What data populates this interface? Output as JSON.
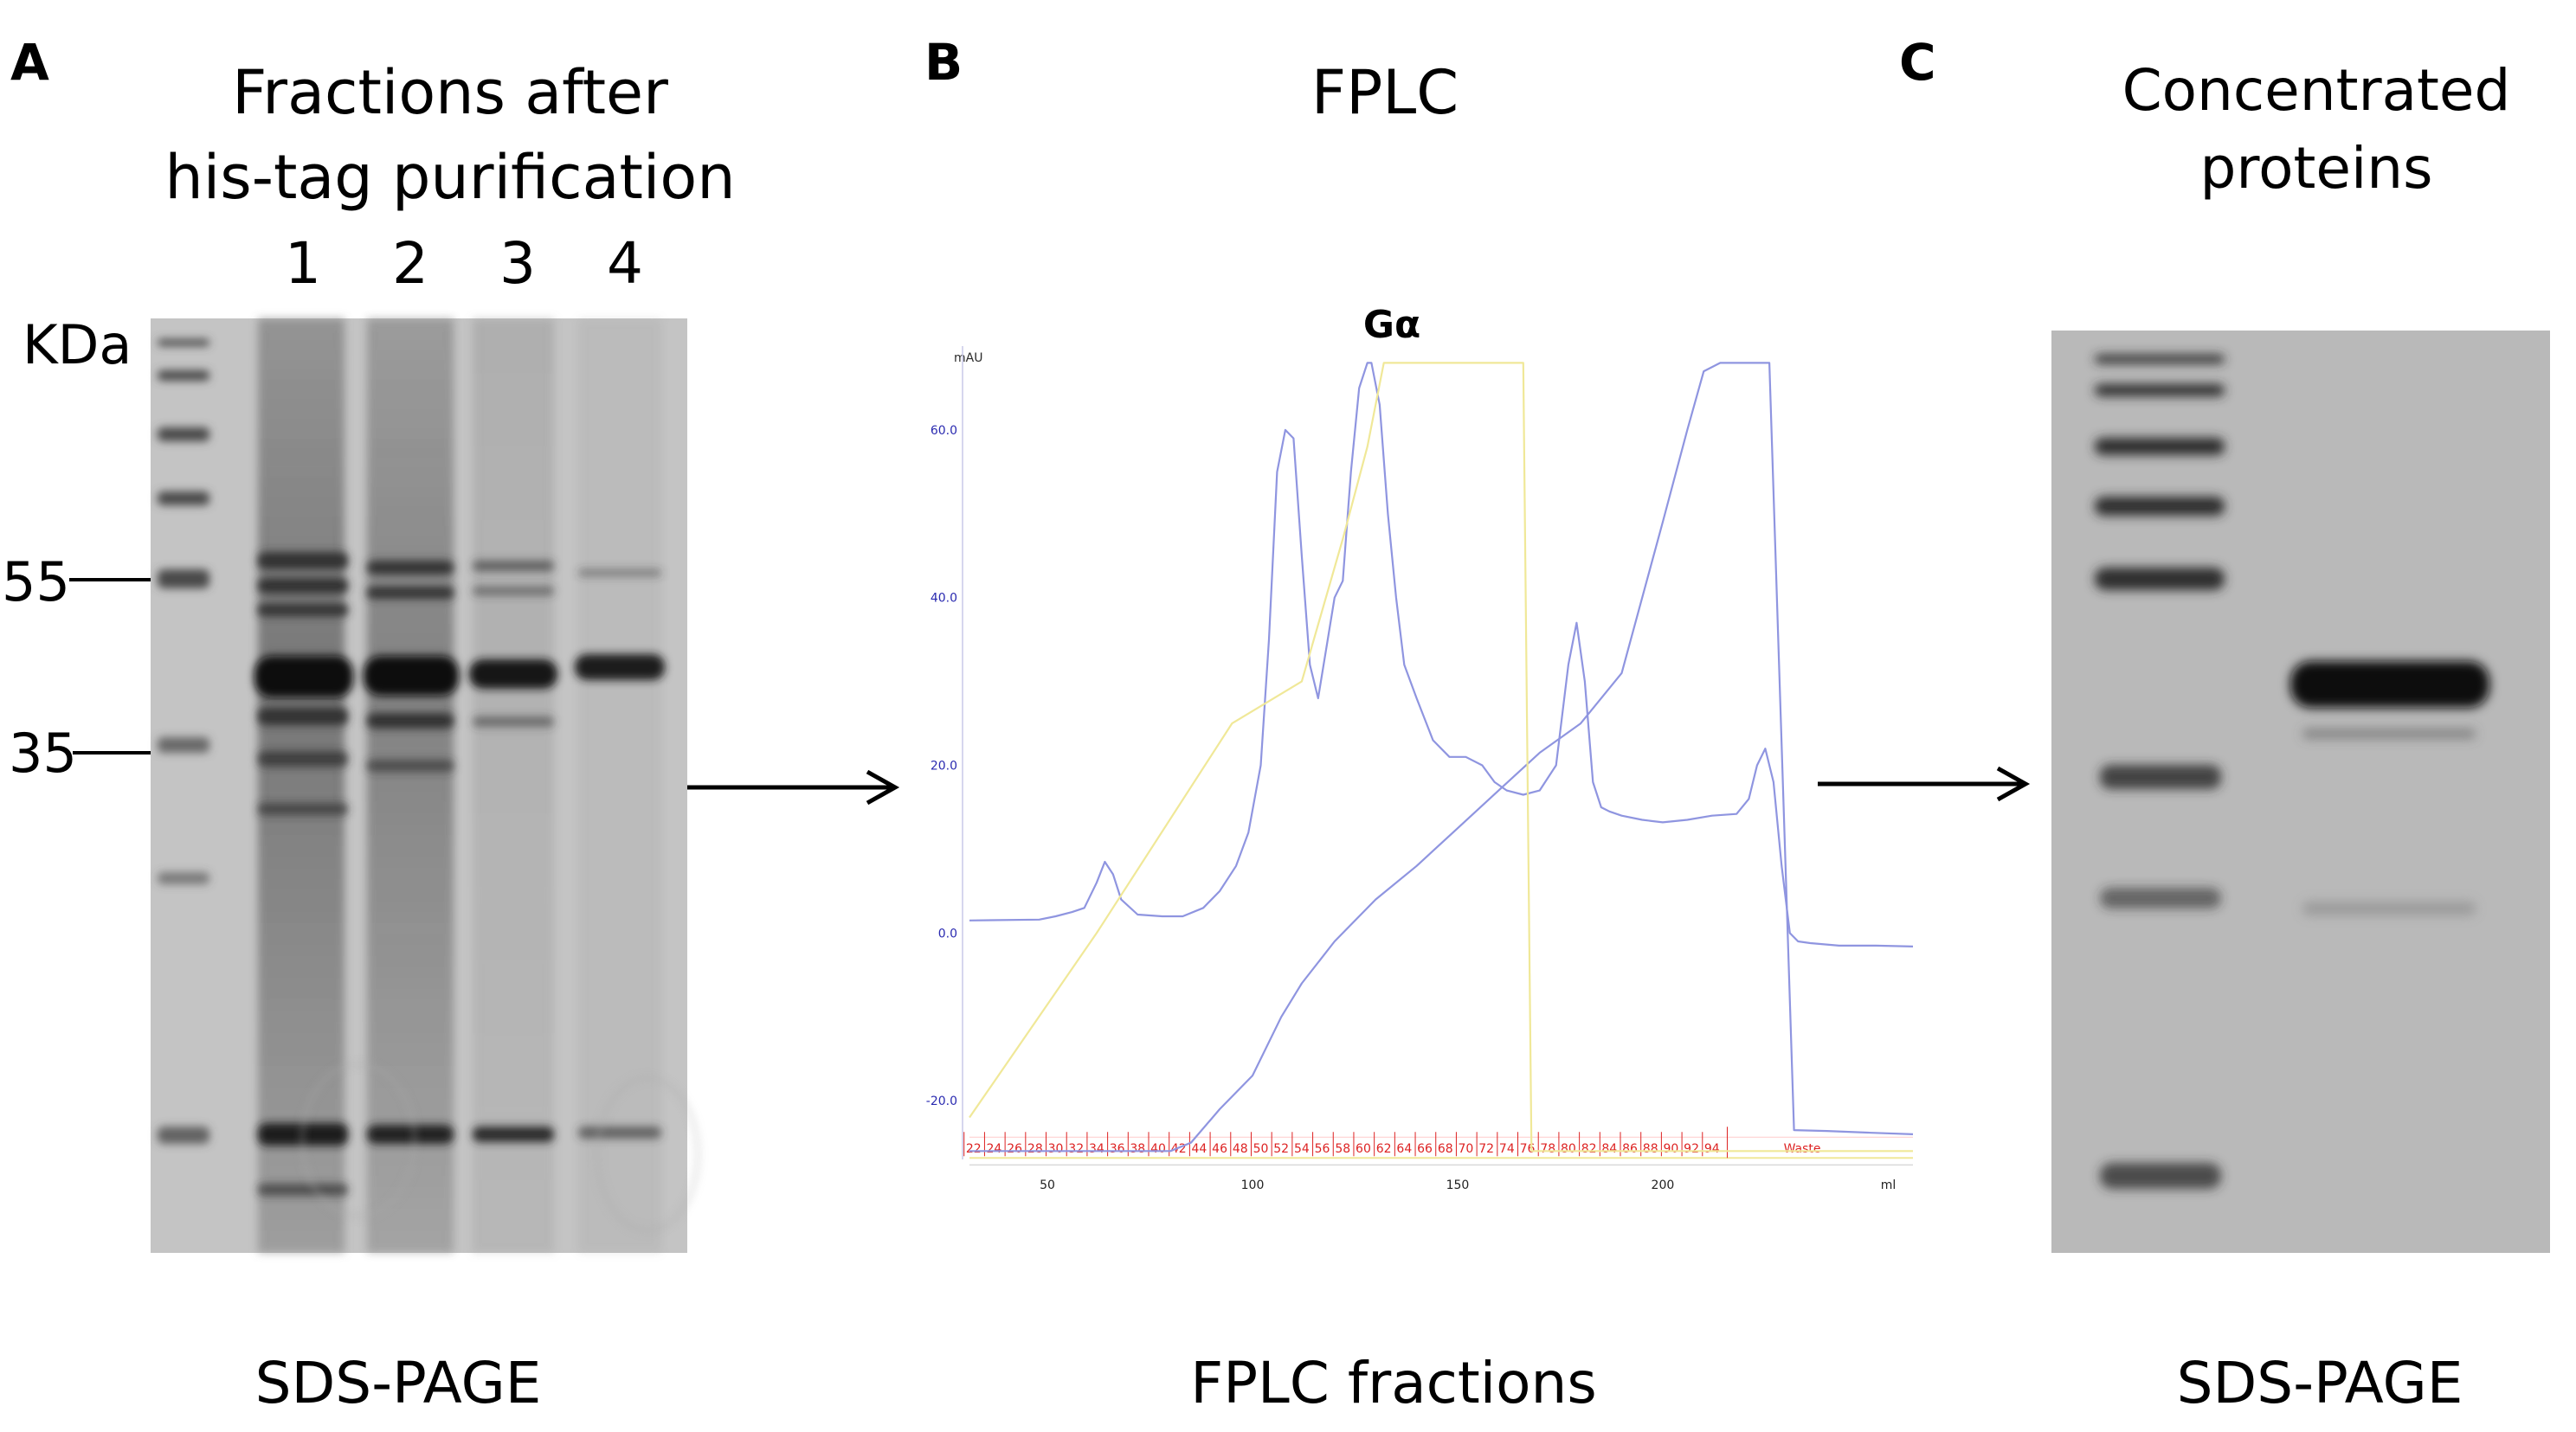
{
  "panelA": {
    "letter": "A",
    "title_line1": "Fractions after",
    "title_line2": "his-tag purification",
    "lanes": [
      "1",
      "2",
      "3",
      "4"
    ],
    "mw_unit": "KDa",
    "mw_markers": [
      "55",
      "35"
    ],
    "caption": "SDS-PAGE"
  },
  "panelB": {
    "letter": "B",
    "title": "FPLC",
    "caption": "FPLC fractions",
    "colors": {
      "uv": "#8f95e0",
      "conc": "#f0e898",
      "fraction": "#dd2222",
      "axis": "#2a2ab0"
    },
    "chart_data": {
      "type": "line",
      "title": "Gα",
      "ylabel": "mAU",
      "xlabel": "ml",
      "ylim": [
        -27,
        70
      ],
      "xlim": [
        31,
        261
      ],
      "y_ticks": [
        "60.0",
        "40.0",
        "20.0",
        "0.0",
        "-20.0"
      ],
      "y_tick_values": [
        60,
        40,
        20,
        0,
        -20
      ],
      "x_ticks": [
        "50",
        "100",
        "150",
        "200",
        "ml"
      ],
      "x_tick_values": [
        50,
        100,
        150,
        200,
        255
      ],
      "fraction_labels": [
        "22",
        "24",
        "26",
        "28",
        "30",
        "32",
        "34",
        "36",
        "38",
        "40",
        "42",
        "44",
        "46",
        "48",
        "50",
        "52",
        "54",
        "56",
        "58",
        "60",
        "62",
        "64",
        "66",
        "68",
        "70",
        "72",
        "74",
        "76",
        "78",
        "80",
        "82",
        "84",
        "86",
        "88",
        "90",
        "92",
        "94"
      ],
      "fraction_start": 32,
      "fraction_step": 5,
      "waste_label": "Waste",
      "waste_x": 234,
      "series": [
        {
          "color": "#8f95e0",
          "x": [
            31,
            48,
            52,
            56,
            59,
            62,
            64,
            66,
            68,
            72,
            78,
            83,
            88,
            92,
            96,
            99,
            102,
            104,
            106,
            108,
            110,
            112,
            114,
            116,
            118,
            120,
            122,
            124,
            126,
            128,
            129,
            131,
            133,
            135,
            137,
            140,
            144,
            148,
            152,
            156,
            159,
            162,
            166,
            170,
            174,
            177,
            179,
            181,
            183,
            185,
            187,
            190,
            195,
            200,
            206,
            212,
            218,
            221,
            223,
            225,
            227,
            229,
            231,
            233,
            236,
            243,
            252,
            261
          ],
          "y": [
            1.5,
            1.6,
            2.0,
            2.5,
            3.0,
            6.0,
            8.5,
            7.0,
            4.0,
            2.2,
            2.0,
            2.0,
            3.0,
            5.0,
            8.0,
            12.0,
            20.0,
            35.0,
            55.0,
            60.0,
            59.0,
            45.0,
            32.0,
            28.0,
            34.0,
            40.0,
            42.0,
            55.0,
            65.0,
            68.0,
            68.0,
            63.0,
            50.0,
            40.0,
            32.0,
            28.0,
            23.0,
            21.0,
            21.0,
            20.0,
            18.0,
            17.0,
            16.5,
            17.0,
            20.0,
            32.0,
            37.0,
            30.0,
            18.0,
            15.0,
            14.5,
            14.0,
            13.5,
            13.2,
            13.5,
            14.0,
            14.2,
            16.0,
            20.0,
            22.0,
            18.0,
            8.0,
            0.0,
            -1.0,
            -1.2,
            -1.5,
            -1.5,
            -1.6
          ]
        },
        {
          "color": "#8f95e0",
          "x": [
            31,
            80,
            85,
            92,
            100,
            107,
            112,
            120,
            130,
            140,
            150,
            160,
            170,
            180,
            190,
            200,
            206,
            210,
            214,
            220,
            226,
            232,
            240,
            250,
            261
          ],
          "y": [
            -26,
            -26,
            -25,
            -21,
            -17,
            -10,
            -6,
            -1,
            4,
            8,
            12.5,
            17,
            21.5,
            25,
            31,
            49,
            60,
            67,
            68,
            68,
            68,
            -23.5,
            -23.6,
            -23.8,
            -24
          ]
        },
        {
          "color": "#f0e898",
          "x": [
            31,
            62,
            95,
            112,
            122,
            128,
            132,
            148,
            162,
            164,
            166,
            168,
            200,
            230,
            261
          ],
          "y": [
            -22,
            0,
            25,
            30,
            47,
            58,
            68,
            68,
            68,
            68,
            68,
            -26,
            -26,
            -26,
            -26
          ]
        }
      ]
    }
  },
  "panelC": {
    "letter": "C",
    "title_line1": "Concentrated",
    "title_line2": "proteins",
    "caption": "SDS-PAGE"
  }
}
